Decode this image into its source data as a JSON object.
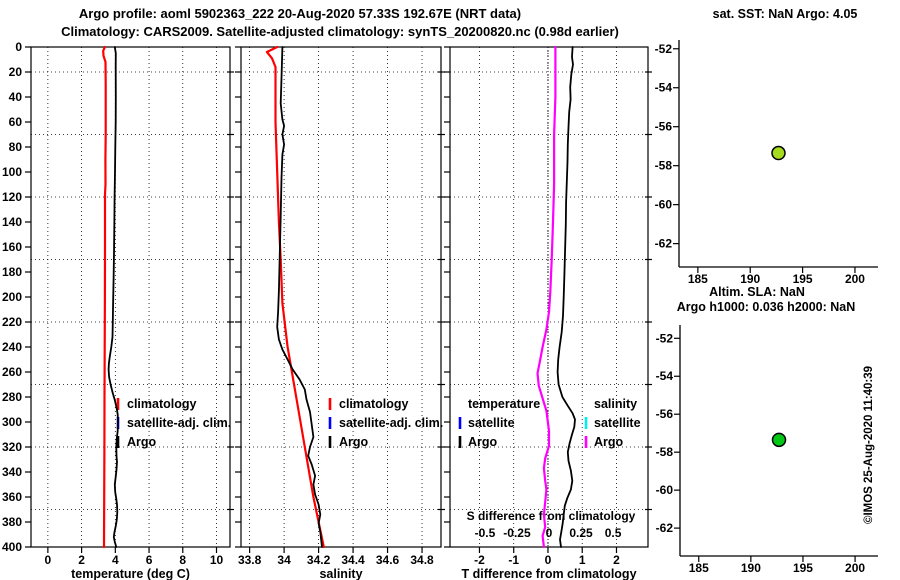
{
  "header": {
    "title_line1": "Argo profile: aoml 5902363_222 20-Aug-2020 57.33S 192.67E (NRT data)",
    "title_line2": "Climatology: CARS2009. Satellite-adjusted climatology: synTS_20200820.nc (0.98d earlier)"
  },
  "annotations": {
    "watermark": "©IMOS 25-Aug-2020 11:40:39"
  },
  "colors": {
    "climatology": "#ff0000",
    "satellite_adjusted": "#0000ff",
    "argo": "#000000",
    "s_difference": "#ff00ff",
    "satellite_salinity": "#00eeee",
    "sst_dot": "#a6dc1e",
    "sla_dot": "#00c814"
  },
  "chart_data": [
    {
      "id": "temperature-profile",
      "type": "line",
      "xlabel": "temperature (deg C)",
      "x_ticks": [
        "0",
        "2",
        "4",
        "6",
        "8",
        "10"
      ],
      "x_tick_values": [
        0,
        2,
        4,
        6,
        8,
        10
      ],
      "xlim": [
        -1.0,
        10.8
      ],
      "ylim": [
        0,
        400
      ],
      "y_tick_step": 20,
      "grid_depths": [
        20,
        70,
        120,
        170,
        220,
        270,
        320,
        370
      ],
      "show_depth_labels": true,
      "legend": [
        {
          "label": "climatology",
          "color": "#ff0000"
        },
        {
          "label": "satellite-adj. clim.",
          "color": "#0000ff"
        },
        {
          "label": "Argo",
          "color": "#000000"
        }
      ],
      "series": [
        {
          "name": "climatology",
          "color": "#ff0000",
          "width": 2.2,
          "points": [
            [
              3.38,
              0
            ],
            [
              3.28,
              3
            ],
            [
              3.3,
              7
            ],
            [
              3.42,
              12
            ],
            [
              3.43,
              30
            ],
            [
              3.43,
              70
            ],
            [
              3.41,
              90
            ],
            [
              3.42,
              110
            ],
            [
              3.39,
              118
            ],
            [
              3.39,
              160
            ],
            [
              3.38,
              200
            ],
            [
              3.37,
              240
            ],
            [
              3.36,
              280
            ],
            [
              3.35,
              320
            ],
            [
              3.34,
              360
            ],
            [
              3.33,
              400
            ]
          ]
        },
        {
          "name": "Argo",
          "color": "#000000",
          "width": 1.8,
          "points": [
            [
              3.97,
              0
            ],
            [
              4.03,
              5
            ],
            [
              4.02,
              15
            ],
            [
              4.03,
              40
            ],
            [
              4.02,
              60
            ],
            [
              4.0,
              80
            ],
            [
              3.98,
              100
            ],
            [
              3.96,
              120
            ],
            [
              3.94,
              145
            ],
            [
              3.92,
              165
            ],
            [
              3.9,
              185
            ],
            [
              3.87,
              205
            ],
            [
              3.85,
              220
            ],
            [
              3.83,
              232
            ],
            [
              3.76,
              240
            ],
            [
              3.68,
              247
            ],
            [
              3.62,
              253
            ],
            [
              3.6,
              258
            ],
            [
              3.63,
              264
            ],
            [
              3.72,
              270
            ],
            [
              3.85,
              277
            ],
            [
              3.98,
              283
            ],
            [
              4.08,
              289
            ],
            [
              4.14,
              294
            ],
            [
              4.16,
              300
            ],
            [
              4.14,
              307
            ],
            [
              4.09,
              313
            ],
            [
              4.06,
              320
            ],
            [
              4.07,
              327
            ],
            [
              4.1,
              332
            ],
            [
              4.07,
              338
            ],
            [
              4.02,
              344
            ],
            [
              3.97,
              350
            ],
            [
              3.99,
              356
            ],
            [
              4.05,
              361
            ],
            [
              4.1,
              366
            ],
            [
              4.12,
              372
            ],
            [
              4.09,
              378
            ],
            [
              4.03,
              383
            ],
            [
              3.95,
              388
            ],
            [
              3.91,
              392
            ],
            [
              3.97,
              396
            ],
            [
              4.06,
              400
            ]
          ]
        }
      ]
    },
    {
      "id": "salinity-profile",
      "type": "line",
      "xlabel": "salinity",
      "x_ticks": [
        "33.8",
        "34",
        "34.2",
        "34.4",
        "34.6",
        "34.8"
      ],
      "x_tick_values": [
        33.8,
        34.0,
        34.2,
        34.4,
        34.6,
        34.8
      ],
      "xlim": [
        33.75,
        34.91
      ],
      "ylim": [
        0,
        400
      ],
      "y_tick_step": 20,
      "grid_depths": [
        20,
        70,
        120,
        170,
        220,
        270,
        320,
        370
      ],
      "show_depth_labels": false,
      "legend": [
        {
          "label": "climatology",
          "color": "#ff0000"
        },
        {
          "label": "satellite-adj. clim.",
          "color": "#0000ff"
        },
        {
          "label": "Argo",
          "color": "#000000"
        }
      ],
      "series": [
        {
          "name": "climatology",
          "color": "#ff0000",
          "width": 2.2,
          "points": [
            [
              33.96,
              0
            ],
            [
              33.9,
              4
            ],
            [
              33.93,
              9
            ],
            [
              33.95,
              16
            ],
            [
              33.95,
              60
            ],
            [
              33.96,
              100
            ],
            [
              33.97,
              140
            ],
            [
              33.98,
              170
            ],
            [
              33.99,
              205
            ],
            [
              34.02,
              240
            ],
            [
              34.07,
              280
            ],
            [
              34.12,
              320
            ],
            [
              34.17,
              360
            ],
            [
              34.23,
              400
            ]
          ]
        },
        {
          "name": "Argo",
          "color": "#000000",
          "width": 1.8,
          "points": [
            [
              33.99,
              0
            ],
            [
              33.985,
              25
            ],
            [
              33.98,
              45
            ],
            [
              33.99,
              58
            ],
            [
              34.0,
              63
            ],
            [
              33.99,
              70
            ],
            [
              34.0,
              78
            ],
            [
              33.99,
              86
            ],
            [
              33.985,
              105
            ],
            [
              33.98,
              135
            ],
            [
              33.975,
              165
            ],
            [
              33.97,
              195
            ],
            [
              33.965,
              212
            ],
            [
              33.96,
              224
            ],
            [
              33.97,
              234
            ],
            [
              33.99,
              242
            ],
            [
              34.02,
              250
            ],
            [
              34.05,
              258
            ],
            [
              34.09,
              266
            ],
            [
              34.12,
              274
            ],
            [
              34.13,
              282
            ],
            [
              34.15,
              292
            ],
            [
              34.16,
              302
            ],
            [
              34.17,
              312
            ],
            [
              34.15,
              320
            ],
            [
              34.14,
              327
            ],
            [
              34.16,
              334
            ],
            [
              34.18,
              343
            ],
            [
              34.17,
              350
            ],
            [
              34.18,
              358
            ],
            [
              34.2,
              366
            ],
            [
              34.21,
              374
            ],
            [
              34.2,
              381
            ],
            [
              34.21,
              388
            ],
            [
              34.22,
              400
            ]
          ]
        }
      ]
    },
    {
      "id": "difference-profile",
      "type": "line",
      "xlabel": "T difference from climatology",
      "x_ticks": [
        "-2",
        "-1",
        "0",
        "1",
        "2"
      ],
      "x_tick_values": [
        -2,
        -1,
        0,
        1,
        2
      ],
      "xlim": [
        -2.86,
        2.92
      ],
      "ylim": [
        0,
        400
      ],
      "y_tick_step": 20,
      "grid_depths": [
        20,
        70,
        120,
        170,
        220,
        270,
        320,
        370
      ],
      "show_depth_labels": false,
      "zero_line": true,
      "secondary_axis": {
        "label": "S difference from climatology",
        "ticks": [
          "-0.5",
          "-0.25",
          "0",
          "0.25",
          "0.5"
        ],
        "tick_values": [
          -0.5,
          -0.25,
          0,
          0.25,
          0.5
        ],
        "lim": [
          -0.773,
          0.773
        ]
      },
      "legend_left": {
        "title": "temperature",
        "entries": [
          {
            "label": "satellite",
            "color": "#0000ff"
          },
          {
            "label": "Argo",
            "color": "#000000"
          }
        ]
      },
      "legend_right": {
        "title": "salinity",
        "entries": [
          {
            "label": "satellite",
            "color": "#00eeee"
          },
          {
            "label": "Argo",
            "color": "#ff00ff"
          }
        ]
      },
      "series": [
        {
          "name": "T difference",
          "axis": "primary",
          "color": "#000000",
          "width": 1.8,
          "points": [
            [
              0.72,
              0
            ],
            [
              0.7,
              8
            ],
            [
              0.73,
              14
            ],
            [
              0.68,
              22
            ],
            [
              0.65,
              32
            ],
            [
              0.66,
              42
            ],
            [
              0.62,
              52
            ],
            [
              0.6,
              64
            ],
            [
              0.58,
              78
            ],
            [
              0.57,
              92
            ],
            [
              0.55,
              108
            ],
            [
              0.53,
              124
            ],
            [
              0.52,
              142
            ],
            [
              0.5,
              162
            ],
            [
              0.48,
              182
            ],
            [
              0.46,
              200
            ],
            [
              0.44,
              215
            ],
            [
              0.4,
              228
            ],
            [
              0.34,
              240
            ],
            [
              0.3,
              250
            ],
            [
              0.28,
              260
            ],
            [
              0.31,
              270
            ],
            [
              0.42,
              280
            ],
            [
              0.58,
              287
            ],
            [
              0.72,
              293
            ],
            [
              0.79,
              298
            ],
            [
              0.77,
              304
            ],
            [
              0.7,
              310
            ],
            [
              0.63,
              317
            ],
            [
              0.58,
              324
            ],
            [
              0.6,
              331
            ],
            [
              0.67,
              339
            ],
            [
              0.71,
              347
            ],
            [
              0.67,
              354
            ],
            [
              0.56,
              361
            ],
            [
              0.49,
              367
            ],
            [
              0.46,
              374
            ],
            [
              0.43,
              381
            ],
            [
              0.39,
              388
            ],
            [
              0.35,
              394
            ],
            [
              0.38,
              400
            ]
          ]
        },
        {
          "name": "S difference",
          "axis": "secondary",
          "color": "#ff00ff",
          "width": 2.2,
          "points": [
            [
              0.05,
              0
            ],
            [
              0.05,
              40
            ],
            [
              0.04,
              70
            ],
            [
              0.04,
              110
            ],
            [
              0.03,
              145
            ],
            [
              0.02,
              172
            ],
            [
              0.01,
              196
            ],
            [
              0.0,
              212
            ],
            [
              -0.02,
              226
            ],
            [
              -0.05,
              240
            ],
            [
              -0.07,
              251
            ],
            [
              -0.09,
              261
            ],
            [
              -0.08,
              271
            ],
            [
              -0.05,
              281
            ],
            [
              -0.02,
              291
            ],
            [
              -0.01,
              299
            ],
            [
              0.0,
              307
            ],
            [
              0.0,
              319
            ],
            [
              -0.03,
              329
            ],
            [
              -0.04,
              337
            ],
            [
              -0.03,
              347
            ],
            [
              -0.02,
              354
            ],
            [
              -0.03,
              364
            ],
            [
              -0.04,
              374
            ],
            [
              -0.03,
              384
            ],
            [
              -0.05,
              391
            ],
            [
              -0.04,
              400
            ]
          ]
        }
      ]
    },
    {
      "id": "sst-position-map",
      "type": "scatter",
      "title": "sat. SST: NaN Argo: 4.05",
      "xlabel": "Altim. SLA: NaN",
      "x_ticks": [
        "185",
        "190",
        "195",
        "200"
      ],
      "x_tick_values": [
        185,
        190,
        195,
        200
      ],
      "y_ticks": [
        "-52",
        "-54",
        "-56",
        "-58",
        "-60",
        "-62"
      ],
      "y_tick_values": [
        -52,
        -54,
        -56,
        -58,
        -60,
        -62
      ],
      "xlim": [
        183.2,
        202.2
      ],
      "ylim": [
        -63.2,
        -51.55
      ],
      "points": [
        {
          "lon": 192.7,
          "lat": -57.35,
          "fill": "#a6dc1e",
          "edge": "#000000"
        }
      ]
    },
    {
      "id": "sla-position-map",
      "type": "scatter",
      "title": "Argo h1000: 0.036 h2000: NaN",
      "xlabel": "",
      "x_ticks": [
        "185",
        "190",
        "195",
        "200"
      ],
      "x_tick_values": [
        185,
        190,
        195,
        200
      ],
      "y_ticks": [
        "-52",
        "-54",
        "-56",
        "-58",
        "-60",
        "-62"
      ],
      "y_tick_values": [
        -52,
        -54,
        -56,
        -58,
        -60,
        -62
      ],
      "xlim": [
        183.2,
        202.2
      ],
      "ylim": [
        -63.47,
        -51.3
      ],
      "points": [
        {
          "lon": 192.7,
          "lat": -57.35,
          "fill": "#00c814",
          "edge": "#000000"
        }
      ]
    }
  ]
}
